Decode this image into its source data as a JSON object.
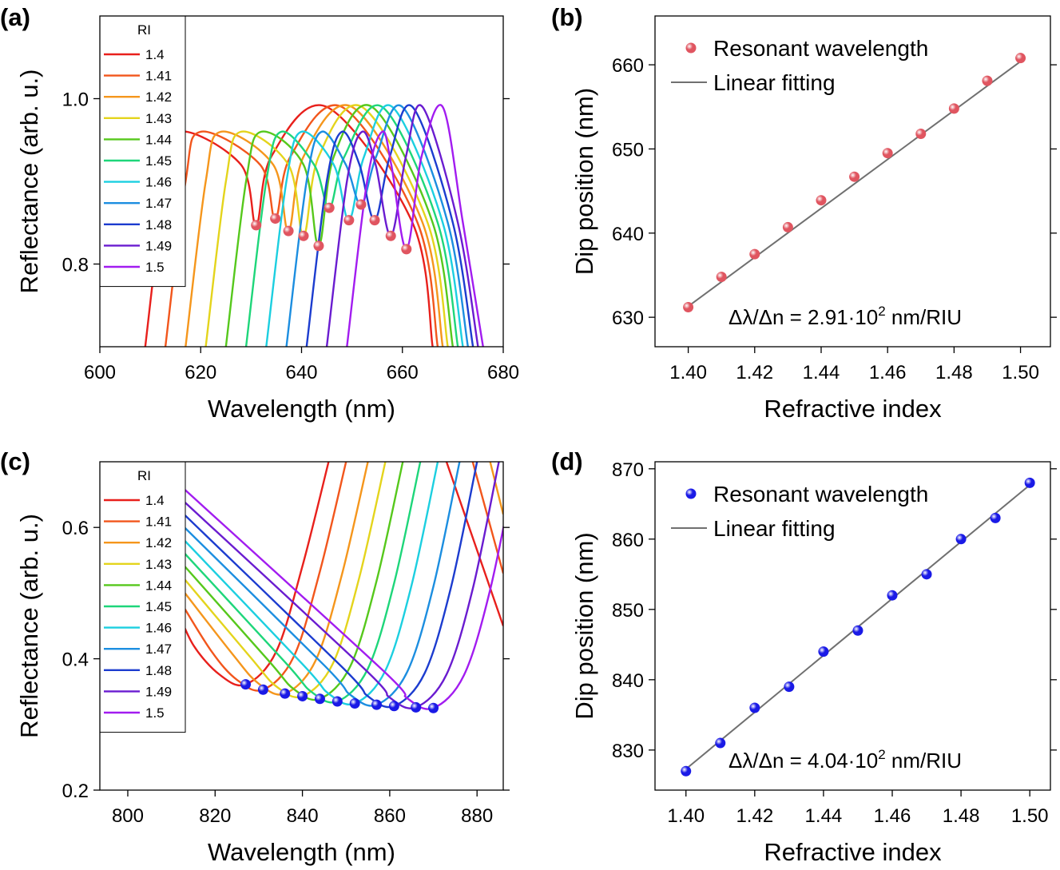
{
  "chart_data": [
    {
      "panel_label": "(a)",
      "type": "line",
      "xlabel": "Wavelength (nm)",
      "ylabel": "Reflectance (arb. u.)",
      "xlim": [
        600,
        680
      ],
      "xticks": [
        600,
        620,
        640,
        660,
        680
      ],
      "ylim": [
        0.7,
        1.1
      ],
      "yticks": [
        0.8,
        {
          "value": 1.0,
          "label": "1.0"
        }
      ],
      "legend_title": "RI",
      "series": [
        {
          "name": "1.4",
          "color": "#e8201c",
          "x": [
            609,
            613,
            616,
            628,
            631.0,
            634,
            645,
            662,
            666
          ],
          "values": [
            0.7,
            0.9,
            0.96,
            0.92,
            0.847,
            0.93,
            0.99,
            0.85,
            0.7
          ]
        },
        {
          "name": "1.41",
          "color": "#f2561c",
          "x": [
            613,
            617,
            620,
            631.8,
            634.8,
            637.8,
            648,
            663,
            667
          ],
          "values": [
            0.7,
            0.9,
            0.96,
            0.92,
            0.855,
            0.93,
            0.99,
            0.85,
            0.7
          ]
        },
        {
          "name": "1.42",
          "color": "#f5961c",
          "x": [
            617,
            621,
            624,
            634.4,
            637.4,
            640.4,
            650,
            664,
            668
          ],
          "values": [
            0.7,
            0.9,
            0.96,
            0.92,
            0.84,
            0.93,
            0.99,
            0.85,
            0.7
          ]
        },
        {
          "name": "1.43",
          "color": "#e4d41c",
          "x": [
            621,
            625,
            628,
            637.4,
            640.4,
            643.4,
            652,
            665,
            669
          ],
          "values": [
            0.7,
            0.9,
            0.96,
            0.92,
            0.834,
            0.93,
            0.99,
            0.85,
            0.7
          ]
        },
        {
          "name": "1.44",
          "color": "#56c81c",
          "x": [
            625,
            629,
            632,
            640.4,
            643.4,
            646.4,
            654,
            666,
            670
          ],
          "values": [
            0.7,
            0.9,
            0.96,
            0.92,
            0.822,
            0.93,
            0.99,
            0.85,
            0.7
          ]
        },
        {
          "name": "1.45",
          "color": "#1ed67a",
          "x": [
            629,
            633,
            636,
            642.5,
            645.5,
            648.5,
            656,
            667,
            671
          ],
          "values": [
            0.7,
            0.9,
            0.96,
            0.92,
            0.868,
            0.93,
            0.99,
            0.85,
            0.7
          ]
        },
        {
          "name": "1.46",
          "color": "#1ccfe0",
          "x": [
            633,
            637,
            640,
            646.4,
            649.4,
            652.4,
            658,
            668,
            672
          ],
          "values": [
            0.7,
            0.9,
            0.96,
            0.92,
            0.853,
            0.93,
            0.99,
            0.85,
            0.7
          ]
        },
        {
          "name": "1.47",
          "color": "#1c8ee0",
          "x": [
            637,
            641,
            644,
            648.8,
            651.8,
            654.8,
            660,
            669,
            673
          ],
          "values": [
            0.7,
            0.9,
            0.96,
            0.92,
            0.872,
            0.93,
            0.99,
            0.85,
            0.7
          ]
        },
        {
          "name": "1.48",
          "color": "#1c3ccf",
          "x": [
            641,
            645,
            648,
            651.5,
            654.5,
            657.5,
            662,
            670,
            674
          ],
          "values": [
            0.7,
            0.9,
            0.96,
            0.92,
            0.853,
            0.93,
            0.99,
            0.85,
            0.7
          ]
        },
        {
          "name": "1.49",
          "color": "#6a1cd0",
          "x": [
            645,
            649,
            652,
            654.7,
            657.7,
            660.7,
            664,
            671,
            675
          ],
          "values": [
            0.7,
            0.9,
            0.96,
            0.92,
            0.834,
            0.93,
            0.99,
            0.85,
            0.7
          ]
        },
        {
          "name": "1.5",
          "color": "#a21cf0",
          "x": [
            649,
            653,
            656,
            657.8,
            660.8,
            663.8,
            668,
            672,
            676
          ],
          "values": [
            0.7,
            0.9,
            0.96,
            0.92,
            0.818,
            0.93,
            0.99,
            0.85,
            0.7
          ]
        }
      ],
      "markers": {
        "color": "#e05560",
        "x": [
          631.0,
          634.8,
          637.4,
          640.4,
          643.4,
          645.5,
          649.4,
          651.8,
          654.5,
          657.7,
          660.8
        ],
        "values": [
          0.847,
          0.855,
          0.84,
          0.834,
          0.822,
          0.868,
          0.853,
          0.872,
          0.853,
          0.834,
          0.818
        ]
      }
    },
    {
      "panel_label": "(b)",
      "type": "scatter",
      "xlabel": "Refractive index",
      "ylabel": "Dip position (nm)",
      "xlim": [
        1.39,
        1.509
      ],
      "xticks": [
        {
          "value": 1.4,
          "label": "1.40"
        },
        {
          "value": 1.42,
          "label": "1.42"
        },
        {
          "value": 1.44,
          "label": "1.44"
        },
        {
          "value": 1.46,
          "label": "1.46"
        },
        {
          "value": 1.48,
          "label": "1.48"
        },
        {
          "value": 1.5,
          "label": "1.50"
        }
      ],
      "ylim": [
        626.5,
        665.8
      ],
      "yticks": [
        630,
        640,
        650,
        660
      ],
      "series": [
        {
          "name": "Resonant wavelength",
          "color": "#e05560",
          "x": [
            1.4,
            1.41,
            1.42,
            1.43,
            1.44,
            1.45,
            1.46,
            1.47,
            1.48,
            1.49,
            1.5
          ],
          "values": [
            631.2,
            634.8,
            637.5,
            640.7,
            643.9,
            646.7,
            649.5,
            651.8,
            654.8,
            658.1,
            660.8
          ]
        }
      ],
      "fit": {
        "name": "Linear fitting",
        "color": "#707070",
        "x": [
          1.4,
          1.5
        ],
        "values": [
          631.3,
          660.4
        ]
      },
      "annotation": {
        "text": "Δλ/Δn = 2.91·10",
        "superscript": "2",
        "unit": " nm/RIU"
      }
    },
    {
      "panel_label": "(c)",
      "type": "line",
      "xlabel": "Wavelength (nm)",
      "ylabel": "Reflectance (arb. u.)",
      "xlim": [
        793.6,
        886
      ],
      "xticks": [
        800,
        820,
        840,
        860,
        880
      ],
      "ylim": [
        0.2,
        0.7
      ],
      "yticks": [
        0.2,
        0.4,
        0.6
      ],
      "legend_title": "RI",
      "series": [
        {
          "name": "1.4",
          "color": "#e8201c",
          "x": [
            811,
            815,
            821,
            827,
            834,
            840,
            846,
            860,
            873,
            886
          ],
          "values": [
            0.48,
            0.421,
            0.376,
            0.361,
            0.411,
            0.541,
            0.7,
            null,
            0.7,
            0.45
          ]
        },
        {
          "name": "1.41",
          "color": "#f2561c",
          "x": [
            811,
            819,
            825,
            831,
            838,
            844,
            850,
            865,
            879,
            886
          ],
          "values": [
            0.499,
            0.413,
            0.368,
            0.353,
            0.403,
            0.533,
            0.7,
            null,
            0.7,
            0.53
          ]
        },
        {
          "name": "1.42",
          "color": "#f5961c",
          "x": [
            811,
            824,
            830,
            836,
            843,
            849,
            855,
            870,
            883,
            886
          ],
          "values": [
            0.518,
            0.407,
            0.362,
            0.347,
            0.397,
            0.527,
            0.7,
            null,
            0.7,
            0.62
          ]
        },
        {
          "name": "1.43",
          "color": "#e4d41c",
          "x": [
            811,
            828,
            834,
            840,
            847,
            853,
            859
          ],
          "values": [
            0.537,
            0.403,
            0.358,
            0.343,
            0.393,
            0.523,
            0.7
          ]
        },
        {
          "name": "1.44",
          "color": "#56c81c",
          "x": [
            811,
            832,
            838,
            844,
            851,
            857,
            863
          ],
          "values": [
            0.556,
            0.399,
            0.354,
            0.339,
            0.389,
            0.519,
            0.7
          ]
        },
        {
          "name": "1.45",
          "color": "#1ed67a",
          "x": [
            811,
            836,
            842,
            848,
            855,
            861,
            867
          ],
          "values": [
            0.575,
            0.395,
            0.35,
            0.335,
            0.385,
            0.515,
            0.7
          ]
        },
        {
          "name": "1.46",
          "color": "#1ccfe0",
          "x": [
            811,
            840,
            846,
            852,
            859,
            865,
            871
          ],
          "values": [
            0.594,
            0.392,
            0.347,
            0.332,
            0.382,
            0.512,
            0.7
          ]
        },
        {
          "name": "1.47",
          "color": "#1c8ee0",
          "x": [
            811,
            845,
            851,
            857,
            864,
            870,
            876
          ],
          "values": [
            0.613,
            0.39,
            0.345,
            0.33,
            0.38,
            0.51,
            0.7
          ]
        },
        {
          "name": "1.48",
          "color": "#1c3ccf",
          "x": [
            811,
            849,
            855,
            861,
            868,
            874,
            880
          ],
          "values": [
            0.632,
            0.388,
            0.343,
            0.328,
            0.378,
            0.508,
            0.7
          ]
        },
        {
          "name": "1.49",
          "color": "#6a1cd0",
          "x": [
            811,
            854,
            860,
            866,
            873,
            879,
            885
          ],
          "values": [
            0.651,
            0.386,
            0.341,
            0.326,
            0.376,
            0.506,
            0.7
          ]
        },
        {
          "name": "1.5",
          "color": "#a21cf0",
          "x": [
            811,
            858,
            864,
            870,
            877,
            883,
            889
          ],
          "values": [
            0.67,
            0.385,
            0.34,
            0.325,
            0.375,
            0.505,
            0.7
          ]
        }
      ],
      "markers": {
        "color": "#1a1ae6",
        "x": [
          827,
          831,
          836,
          840,
          844,
          848,
          852,
          857,
          861,
          866,
          870
        ],
        "values": [
          0.361,
          0.353,
          0.347,
          0.343,
          0.339,
          0.335,
          0.332,
          0.33,
          0.328,
          0.326,
          0.325
        ]
      }
    },
    {
      "panel_label": "(d)",
      "type": "scatter",
      "xlabel": "Refractive index",
      "ylabel": "Dip position (nm)",
      "xlim": [
        1.391,
        1.506
      ],
      "xticks": [
        {
          "value": 1.4,
          "label": "1.40"
        },
        {
          "value": 1.42,
          "label": "1.42"
        },
        {
          "value": 1.44,
          "label": "1.44"
        },
        {
          "value": 1.46,
          "label": "1.46"
        },
        {
          "value": 1.48,
          "label": "1.48"
        },
        {
          "value": 1.5,
          "label": "1.50"
        }
      ],
      "ylim": [
        824.3,
        871
      ],
      "yticks": [
        830,
        840,
        850,
        860,
        870
      ],
      "series": [
        {
          "name": "Resonant wavelength",
          "color": "#1a1ae6",
          "x": [
            1.4,
            1.41,
            1.42,
            1.43,
            1.44,
            1.45,
            1.46,
            1.47,
            1.48,
            1.49,
            1.5
          ],
          "values": [
            827,
            831,
            836,
            839,
            844,
            847,
            852,
            855,
            860,
            863,
            868
          ]
        }
      ],
      "fit": {
        "name": "Linear fitting",
        "color": "#707070",
        "x": [
          1.4,
          1.5
        ],
        "values": [
          827.3,
          867.7
        ]
      },
      "annotation": {
        "text": "Δλ/Δn = 4.04·10",
        "superscript": "2",
        "unit": " nm/RIU"
      }
    }
  ]
}
